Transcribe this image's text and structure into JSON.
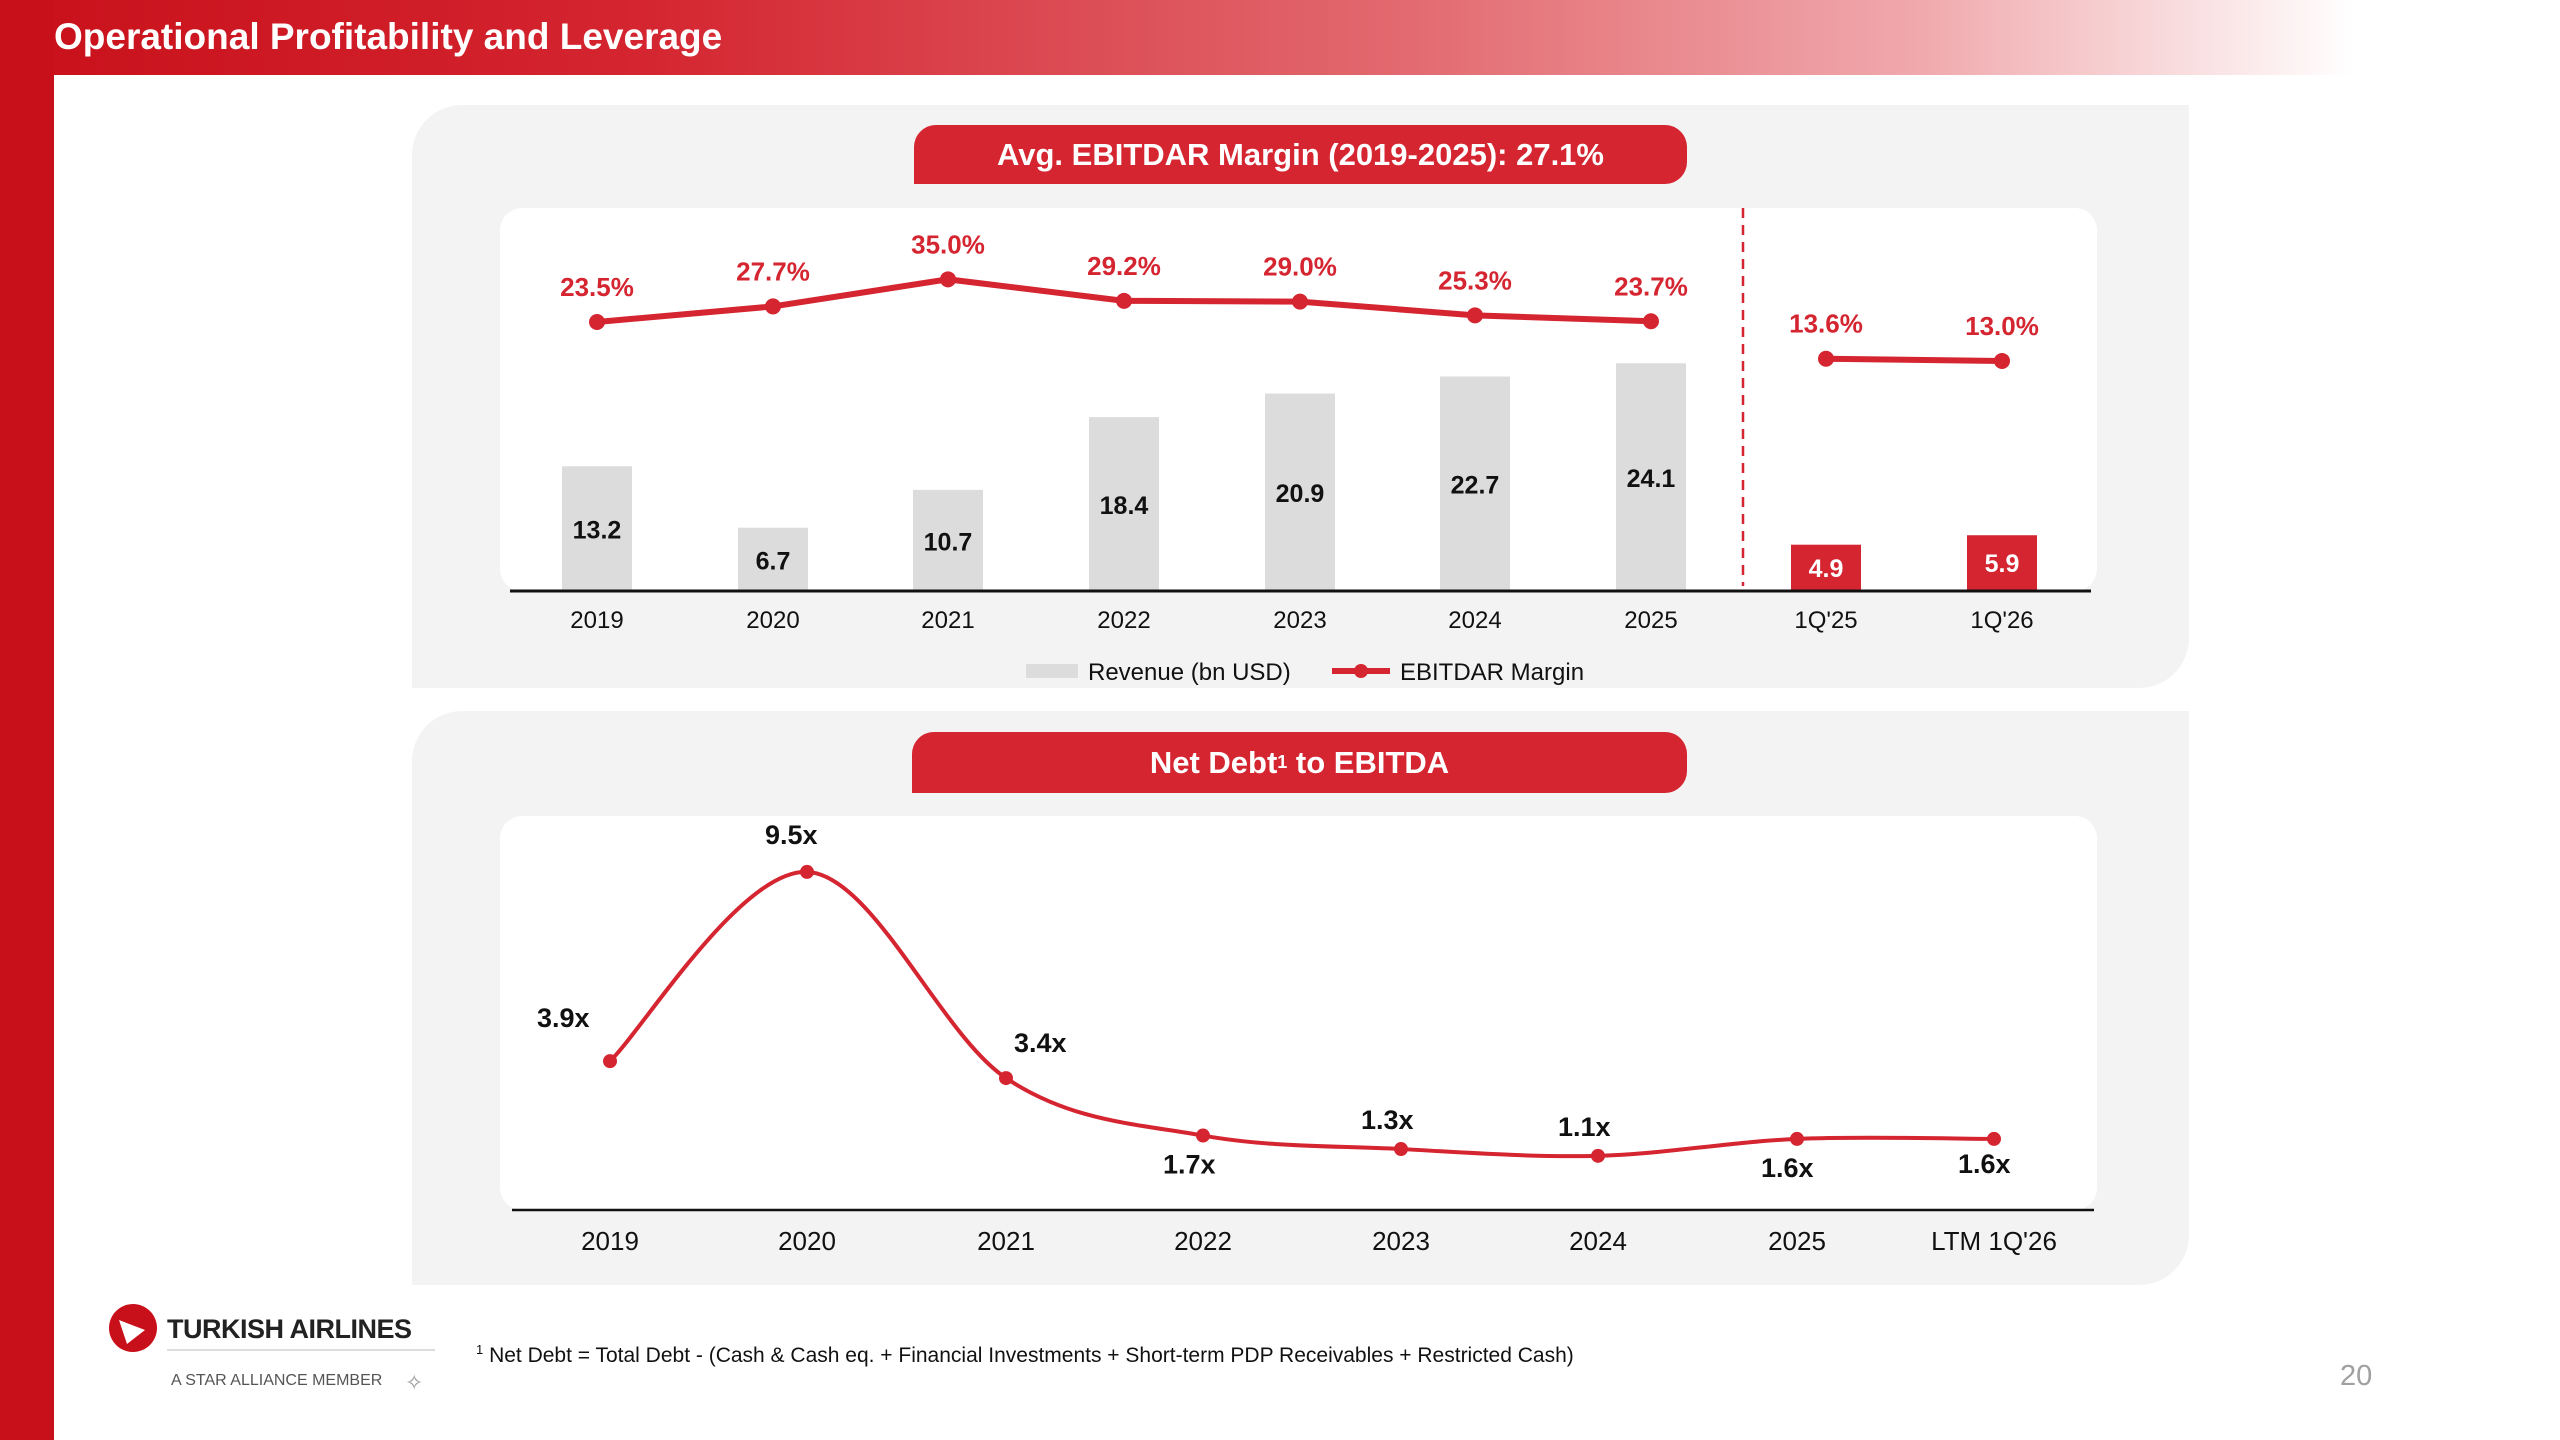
{
  "header": {
    "title": "Operational Profitability and Leverage"
  },
  "chart_data": [
    {
      "type": "bar+line",
      "title": "Avg. EBITDAR Margin (2019-2025): 27.1%",
      "categories": [
        "2019",
        "2020",
        "2021",
        "2022",
        "2023",
        "2024",
        "2025",
        "1Q'25",
        "1Q'26"
      ],
      "series": [
        {
          "name": "Revenue (bn USD)",
          "type": "bar",
          "values": [
            13.2,
            6.7,
            10.7,
            18.4,
            20.9,
            22.7,
            24.1,
            4.9,
            5.9
          ],
          "labels": [
            "13.2",
            "6.7",
            "10.7",
            "18.4",
            "20.9",
            "22.7",
            "24.1",
            "4.9",
            "5.9"
          ],
          "color": "#dcdcdc",
          "highlight_color": "#d42530"
        },
        {
          "name": "EBITDAR Margin",
          "type": "line",
          "values": [
            23.5,
            27.7,
            35.0,
            29.2,
            29.0,
            25.3,
            23.7,
            13.6,
            13.0
          ],
          "labels": [
            "23.5%",
            "27.7%",
            "35.0%",
            "29.2%",
            "29.0%",
            "25.3%",
            "23.7%",
            "13.6%",
            "13.0%"
          ],
          "unit": "%",
          "color": "#d42530"
        }
      ],
      "legend": [
        "Revenue (bn USD)",
        "EBITDAR Margin"
      ],
      "legend_position": "bottom"
    },
    {
      "type": "line",
      "title": "Net Debt",
      "title_sup": "1",
      "title_suffix": " to EBITDA",
      "categories": [
        "2019",
        "2020",
        "2021",
        "2022",
        "2023",
        "2024",
        "2025",
        "LTM 1Q'26"
      ],
      "values": [
        3.9,
        9.5,
        3.4,
        1.7,
        1.3,
        1.1,
        1.6,
        1.6
      ],
      "labels": [
        "3.9x",
        "9.5x",
        "3.4x",
        "1.7x",
        "1.3x",
        "1.1x",
        "1.6x",
        "1.6x"
      ],
      "color": "#d42530",
      "smooth": true
    }
  ],
  "footnote": {
    "sup": "1",
    "text": " Net Debt = Total Debt - (Cash & Cash eq. + Financial Investments + Short-term PDP Receivables + Restricted Cash)"
  },
  "logo": {
    "name": "TURKISH AIRLINES",
    "tagline": "A STAR ALLIANCE MEMBER"
  },
  "page_number": "20"
}
